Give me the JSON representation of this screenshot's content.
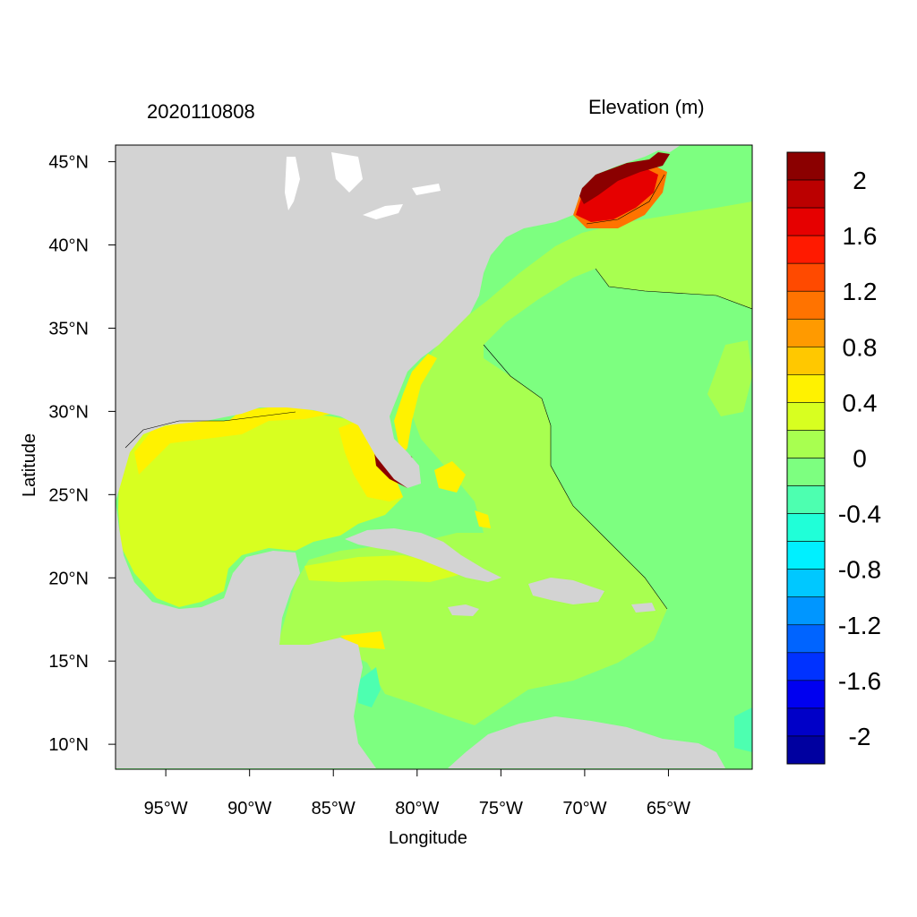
{
  "header": {
    "datetime": "2020110808",
    "variable": "Elevation (m)"
  },
  "axes": {
    "xlabel": "Longitude",
    "ylabel": "Latitude",
    "lon_ticks": [
      "95°W",
      "90°W",
      "85°W",
      "80°W",
      "75°W",
      "70°W",
      "65°W"
    ],
    "lat_ticks": [
      "45°N",
      "40°N",
      "35°N",
      "30°N",
      "25°N",
      "20°N",
      "15°N",
      "10°N"
    ]
  },
  "map": {
    "region": "Gulf of Mexico, Caribbean Sea and western North Atlantic",
    "lon_range": [
      -98,
      -60
    ],
    "lat_range": [
      8.5,
      46
    ]
  },
  "colorbar": {
    "labels": [
      "2",
      "1.6",
      "1.2",
      "0.8",
      "0.4",
      "0",
      "-0.4",
      "-0.8",
      "-1.2",
      "-1.6",
      "-2"
    ],
    "colors": [
      "#8b0000",
      "#bb0000",
      "#e60000",
      "#ff1a00",
      "#ff4a00",
      "#ff7300",
      "#ff9a00",
      "#ffc800",
      "#fff200",
      "#d8ff20",
      "#a8ff50",
      "#7dff80",
      "#4dffb0",
      "#20ffd8",
      "#00f0ff",
      "#00c8ff",
      "#0096ff",
      "#0064ff",
      "#0032ff",
      "#0000f0",
      "#0000c8",
      "#0000a0"
    ]
  },
  "palette": {
    "land": "#d3d3d3",
    "ocean_zero": "#7dff80",
    "gulf": "#d8ff20",
    "caribbean": "#a8ff50",
    "high": "#fff200",
    "surge": "#8b0000",
    "cold": "#4dffb0"
  }
}
